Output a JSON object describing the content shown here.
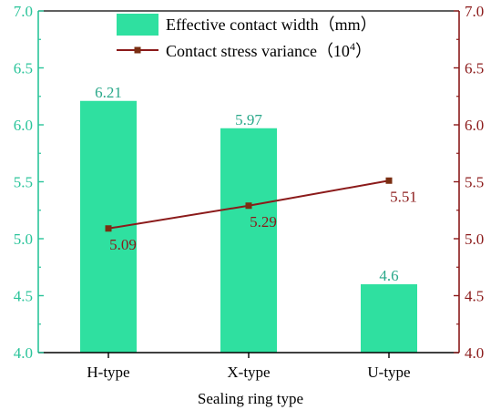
{
  "chart_data": {
    "type": "bar",
    "categories": [
      "H-type",
      "X-type",
      "U-type"
    ],
    "xlabel": "Sealing ring type",
    "ylim_left": [
      4.0,
      7.0
    ],
    "ylim_right": [
      4.0,
      7.0
    ],
    "yticks": [
      "4.0",
      "4.5",
      "5.0",
      "5.5",
      "6.0",
      "6.5",
      "7.0"
    ],
    "grid": false,
    "legend_position": "top-center",
    "series": [
      {
        "name": "Effective contact width（mm）",
        "kind": "bar",
        "axis": "left",
        "values": [
          6.21,
          5.97,
          4.6
        ],
        "labels": [
          "6.21",
          "5.97",
          "4.6"
        ],
        "color": "#2FE0A0",
        "label_color": "#2AA88A"
      },
      {
        "name_main": "Contact stress variance（10",
        "name_sup": "4",
        "name_end": "）",
        "kind": "line",
        "axis": "right",
        "values": [
          5.09,
          5.29,
          5.51
        ],
        "labels": [
          "5.09",
          "5.29",
          "5.51"
        ],
        "color": "#8B1A1A",
        "marker_color": "#7A2E12",
        "label_color": "#8B1A1A"
      }
    ],
    "left_axis_color": "#2AC49A",
    "right_axis_color": "#8B1A1A"
  }
}
